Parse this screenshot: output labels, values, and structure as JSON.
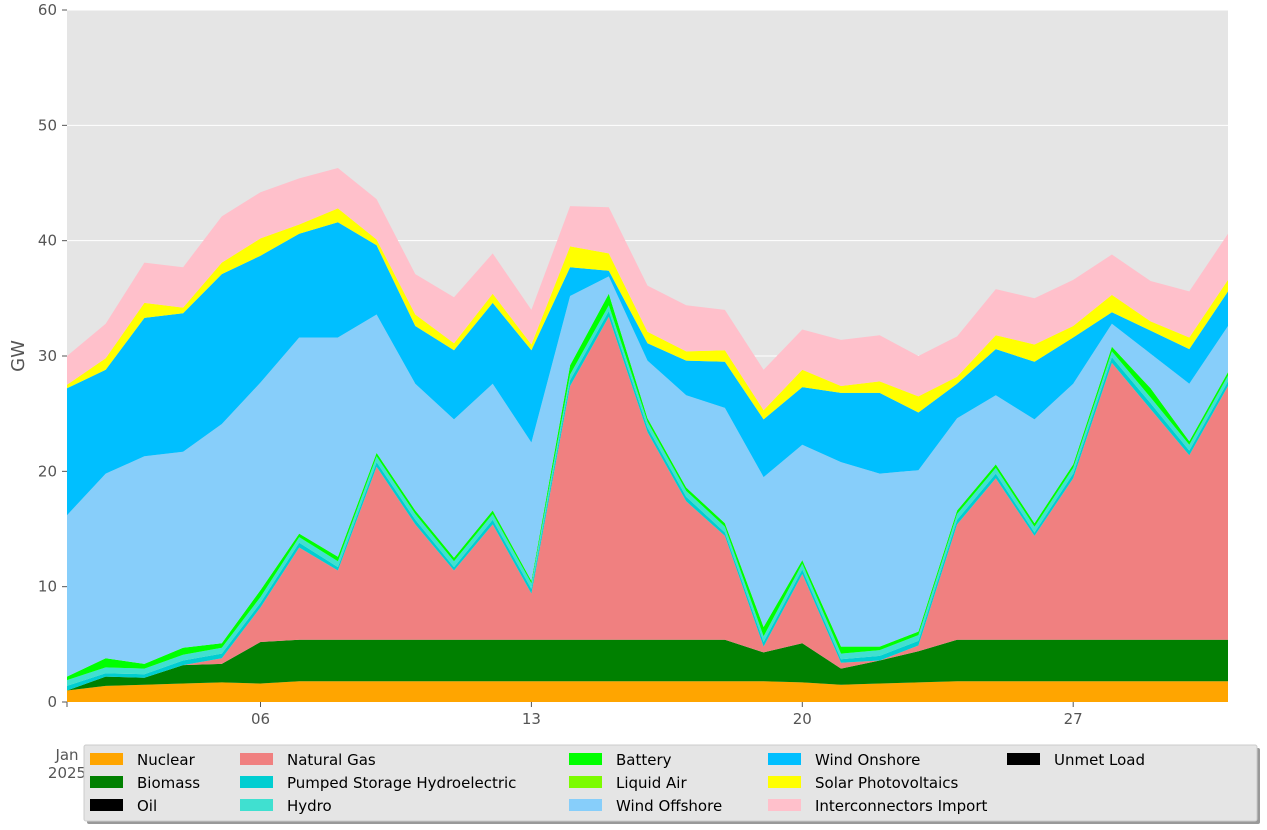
{
  "chart_data": {
    "type": "area",
    "title": "",
    "xlabel": "",
    "ylabel": "GW",
    "ylim": [
      0,
      60
    ],
    "xlim": [
      "2025-01-01",
      "2025-01-31"
    ],
    "grid": true,
    "y_ticks": [
      "0",
      "10",
      "20",
      "30",
      "40",
      "50",
      "60"
    ],
    "x_ticks": [
      {
        "date": "2025-01-06",
        "label": "06"
      },
      {
        "date": "2025-01-13",
        "label": "13"
      },
      {
        "date": "2025-01-20",
        "label": "20"
      },
      {
        "date": "2025-01-27",
        "label": "27"
      }
    ],
    "x_origin_label": {
      "line1": "Jan",
      "line2": "2025"
    },
    "legend_position": "bottom",
    "x": [
      "2025-01-01",
      "2025-01-02",
      "2025-01-03",
      "2025-01-04",
      "2025-01-05",
      "2025-01-06",
      "2025-01-07",
      "2025-01-08",
      "2025-01-09",
      "2025-01-10",
      "2025-01-11",
      "2025-01-12",
      "2025-01-13",
      "2025-01-14",
      "2025-01-15",
      "2025-01-16",
      "2025-01-17",
      "2025-01-18",
      "2025-01-19",
      "2025-01-20",
      "2025-01-21",
      "2025-01-22",
      "2025-01-23",
      "2025-01-24",
      "2025-01-25",
      "2025-01-26",
      "2025-01-27",
      "2025-01-28",
      "2025-01-29",
      "2025-01-30",
      "2025-01-31"
    ],
    "series": [
      {
        "name": "Nuclear",
        "color": "#FFA500",
        "values": [
          1.0,
          1.4,
          1.5,
          1.6,
          1.7,
          1.6,
          1.8,
          1.8,
          1.8,
          1.8,
          1.8,
          1.8,
          1.8,
          1.8,
          1.8,
          1.8,
          1.8,
          1.8,
          1.8,
          1.7,
          1.5,
          1.6,
          1.7,
          1.8,
          1.8,
          1.8,
          1.8,
          1.8,
          1.8,
          1.8,
          1.8
        ]
      },
      {
        "name": "Biomass",
        "color": "#008000",
        "values": [
          0.0,
          0.8,
          0.6,
          1.6,
          1.6,
          3.6,
          3.6,
          3.6,
          3.6,
          3.6,
          3.6,
          3.6,
          3.6,
          3.6,
          3.6,
          3.6,
          3.6,
          3.6,
          2.5,
          3.4,
          1.4,
          2.0,
          2.7,
          3.6,
          3.6,
          3.6,
          3.6,
          3.6,
          3.6,
          3.6,
          3.6
        ]
      },
      {
        "name": "Oil",
        "color": "#000000",
        "values": [
          0,
          0,
          0,
          0,
          0,
          0,
          0,
          0,
          0,
          0,
          0,
          0,
          0,
          0,
          0,
          0,
          0,
          0,
          0,
          0,
          0,
          0,
          0,
          0,
          0,
          0,
          0,
          0,
          0,
          0,
          0
        ]
      },
      {
        "name": "Natural Gas",
        "color": "#F08080",
        "values": [
          0.0,
          0.0,
          0.0,
          0.0,
          0.5,
          3.0,
          8.0,
          6.0,
          15.0,
          10.0,
          6.0,
          10.0,
          4.0,
          22.0,
          28.0,
          18.0,
          12.0,
          9.0,
          0.5,
          6.0,
          0.5,
          0.0,
          0.5,
          10.0,
          14.0,
          9.0,
          14.0,
          24.0,
          20.0,
          16.0,
          22.0
        ]
      },
      {
        "name": "Pumped Storage Hydroelectric",
        "color": "#00CED1",
        "values": [
          0.4,
          0.3,
          0.3,
          0.4,
          0.4,
          0.4,
          0.4,
          0.3,
          0.4,
          0.4,
          0.3,
          0.4,
          0.4,
          0.5,
          0.5,
          0.4,
          0.4,
          0.3,
          0.4,
          0.4,
          0.3,
          0.4,
          0.4,
          0.4,
          0.4,
          0.3,
          0.4,
          0.5,
          0.5,
          0.4,
          0.4
        ]
      },
      {
        "name": "Hydro",
        "color": "#40E0D0",
        "values": [
          0.5,
          0.5,
          0.5,
          0.5,
          0.5,
          0.5,
          0.5,
          0.5,
          0.5,
          0.5,
          0.5,
          0.5,
          0.5,
          0.5,
          0.5,
          0.5,
          0.5,
          0.5,
          0.5,
          0.5,
          0.5,
          0.5,
          0.5,
          0.5,
          0.5,
          0.5,
          0.5,
          0.5,
          0.5,
          0.5,
          0.5
        ]
      },
      {
        "name": "Battery",
        "color": "#00FF00",
        "values": [
          0.3,
          0.8,
          0.4,
          0.6,
          0.4,
          0.6,
          0.3,
          0.4,
          0.3,
          0.3,
          0.3,
          0.3,
          0.2,
          0.8,
          1.0,
          0.3,
          0.3,
          0.3,
          0.8,
          0.3,
          0.6,
          0.3,
          0.3,
          0.3,
          0.3,
          0.3,
          0.3,
          0.4,
          0.8,
          0.3,
          0.3
        ]
      },
      {
        "name": "Liquid Air",
        "color": "#7CFC00",
        "values": [
          0,
          0,
          0,
          0,
          0,
          0,
          0,
          0,
          0,
          0,
          0,
          0,
          0,
          0,
          0,
          0,
          0,
          0,
          0,
          0,
          0,
          0,
          0,
          0,
          0,
          0,
          0,
          0,
          0,
          0,
          0
        ]
      },
      {
        "name": "Wind Offshore",
        "color": "#87CEFA",
        "values": [
          14.0,
          16.0,
          18.0,
          17.0,
          19.0,
          18.0,
          17.0,
          19.0,
          12.0,
          11.0,
          12.0,
          11.0,
          12.0,
          6.0,
          1.5,
          5.0,
          8.0,
          10.0,
          13.0,
          10.0,
          16.0,
          15.0,
          14.0,
          8.0,
          6.0,
          9.0,
          7.0,
          2.0,
          3.0,
          5.0,
          4.0
        ]
      },
      {
        "name": "Wind Onshore",
        "color": "#00BFFF",
        "values": [
          11.0,
          9.0,
          12.0,
          12.0,
          13.0,
          11.0,
          9.0,
          10.0,
          6.0,
          5.0,
          6.0,
          7.0,
          8.0,
          2.5,
          0.5,
          1.5,
          3.0,
          4.0,
          5.0,
          5.0,
          6.0,
          7.0,
          5.0,
          3.0,
          4.0,
          5.0,
          4.0,
          1.0,
          2.0,
          3.0,
          3.0
        ]
      },
      {
        "name": "Solar Photovoltaics",
        "color": "#FFFF00",
        "values": [
          0.3,
          1.0,
          1.3,
          0.5,
          1.0,
          1.5,
          0.8,
          1.2,
          0.5,
          1.0,
          0.6,
          0.8,
          0.5,
          1.8,
          1.5,
          1.0,
          0.8,
          1.0,
          0.8,
          1.5,
          0.6,
          1.0,
          1.4,
          0.6,
          1.2,
          1.5,
          1.0,
          1.5,
          0.8,
          1.0,
          1.0
        ]
      },
      {
        "name": "Interconnectors Import",
        "color": "#FFC0CB",
        "values": [
          2.5,
          3.0,
          3.5,
          3.5,
          4.0,
          4.0,
          4.0,
          3.5,
          3.5,
          3.5,
          4.0,
          3.5,
          3.0,
          3.5,
          4.0,
          4.0,
          4.0,
          3.5,
          3.5,
          3.5,
          4.0,
          4.0,
          3.5,
          3.5,
          4.0,
          4.0,
          4.0,
          3.5,
          3.5,
          4.0,
          4.0
        ]
      },
      {
        "name": "Unmet Load",
        "color": "#000000",
        "values": [
          0,
          0,
          0,
          0,
          0,
          0,
          0,
          0,
          0,
          0,
          0,
          0,
          0,
          0,
          0,
          0,
          0,
          0,
          0,
          0,
          0,
          0,
          0,
          0,
          0,
          0,
          0,
          0,
          0,
          0,
          0
        ]
      }
    ],
    "legend": [
      {
        "label": "Nuclear",
        "color": "#FFA500"
      },
      {
        "label": "Biomass",
        "color": "#008000"
      },
      {
        "label": "Oil",
        "color": "#000000"
      },
      {
        "label": "Natural Gas",
        "color": "#F08080"
      },
      {
        "label": "Pumped Storage Hydroelectric",
        "color": "#00CED1"
      },
      {
        "label": "Hydro",
        "color": "#40E0D0"
      },
      {
        "label": "Battery",
        "color": "#00FF00"
      },
      {
        "label": "Liquid Air",
        "color": "#7CFC00"
      },
      {
        "label": "Wind Offshore",
        "color": "#87CEFA"
      },
      {
        "label": "Wind Onshore",
        "color": "#00BFFF"
      },
      {
        "label": "Solar Photovoltaics",
        "color": "#FFFF00"
      },
      {
        "label": "Interconnectors Import",
        "color": "#FFC0CB"
      },
      {
        "label": "Unmet Load",
        "color": "#000000"
      }
    ]
  }
}
